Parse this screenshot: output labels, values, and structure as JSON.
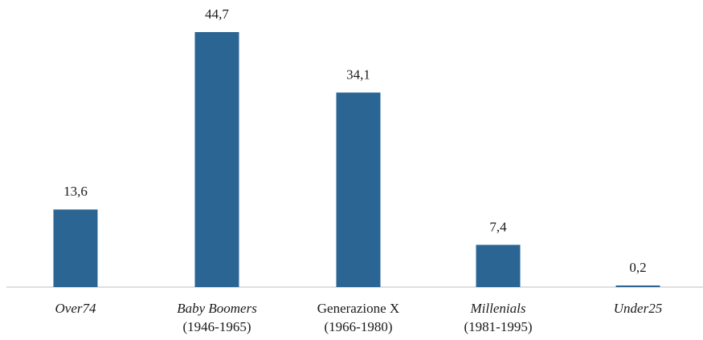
{
  "chart_data": {
    "type": "bar",
    "categories": [
      {
        "line1": "Over74",
        "line1_italic": true,
        "line2": ""
      },
      {
        "line1": "Baby Boomers",
        "line1_italic": true,
        "line2": "(1946-1965)"
      },
      {
        "line1": "Generazione X",
        "line1_italic": false,
        "line2": "(1966-1980)"
      },
      {
        "line1": "Millenials",
        "line1_italic": true,
        "line2": "(1981-1995)"
      },
      {
        "line1": "Under25",
        "line1_italic": true,
        "line2": ""
      }
    ],
    "values": [
      13.6,
      44.7,
      34.1,
      7.4,
      0.2
    ],
    "value_labels": [
      "13,6",
      "44,7",
      "34,1",
      "7,4",
      "0,2"
    ],
    "title": "",
    "xlabel": "",
    "ylabel": "",
    "ylim": [
      0,
      44.7
    ],
    "grid": false,
    "legend": "none",
    "bar_color": "#2b6594",
    "axis_color": "#bfbfbf"
  }
}
